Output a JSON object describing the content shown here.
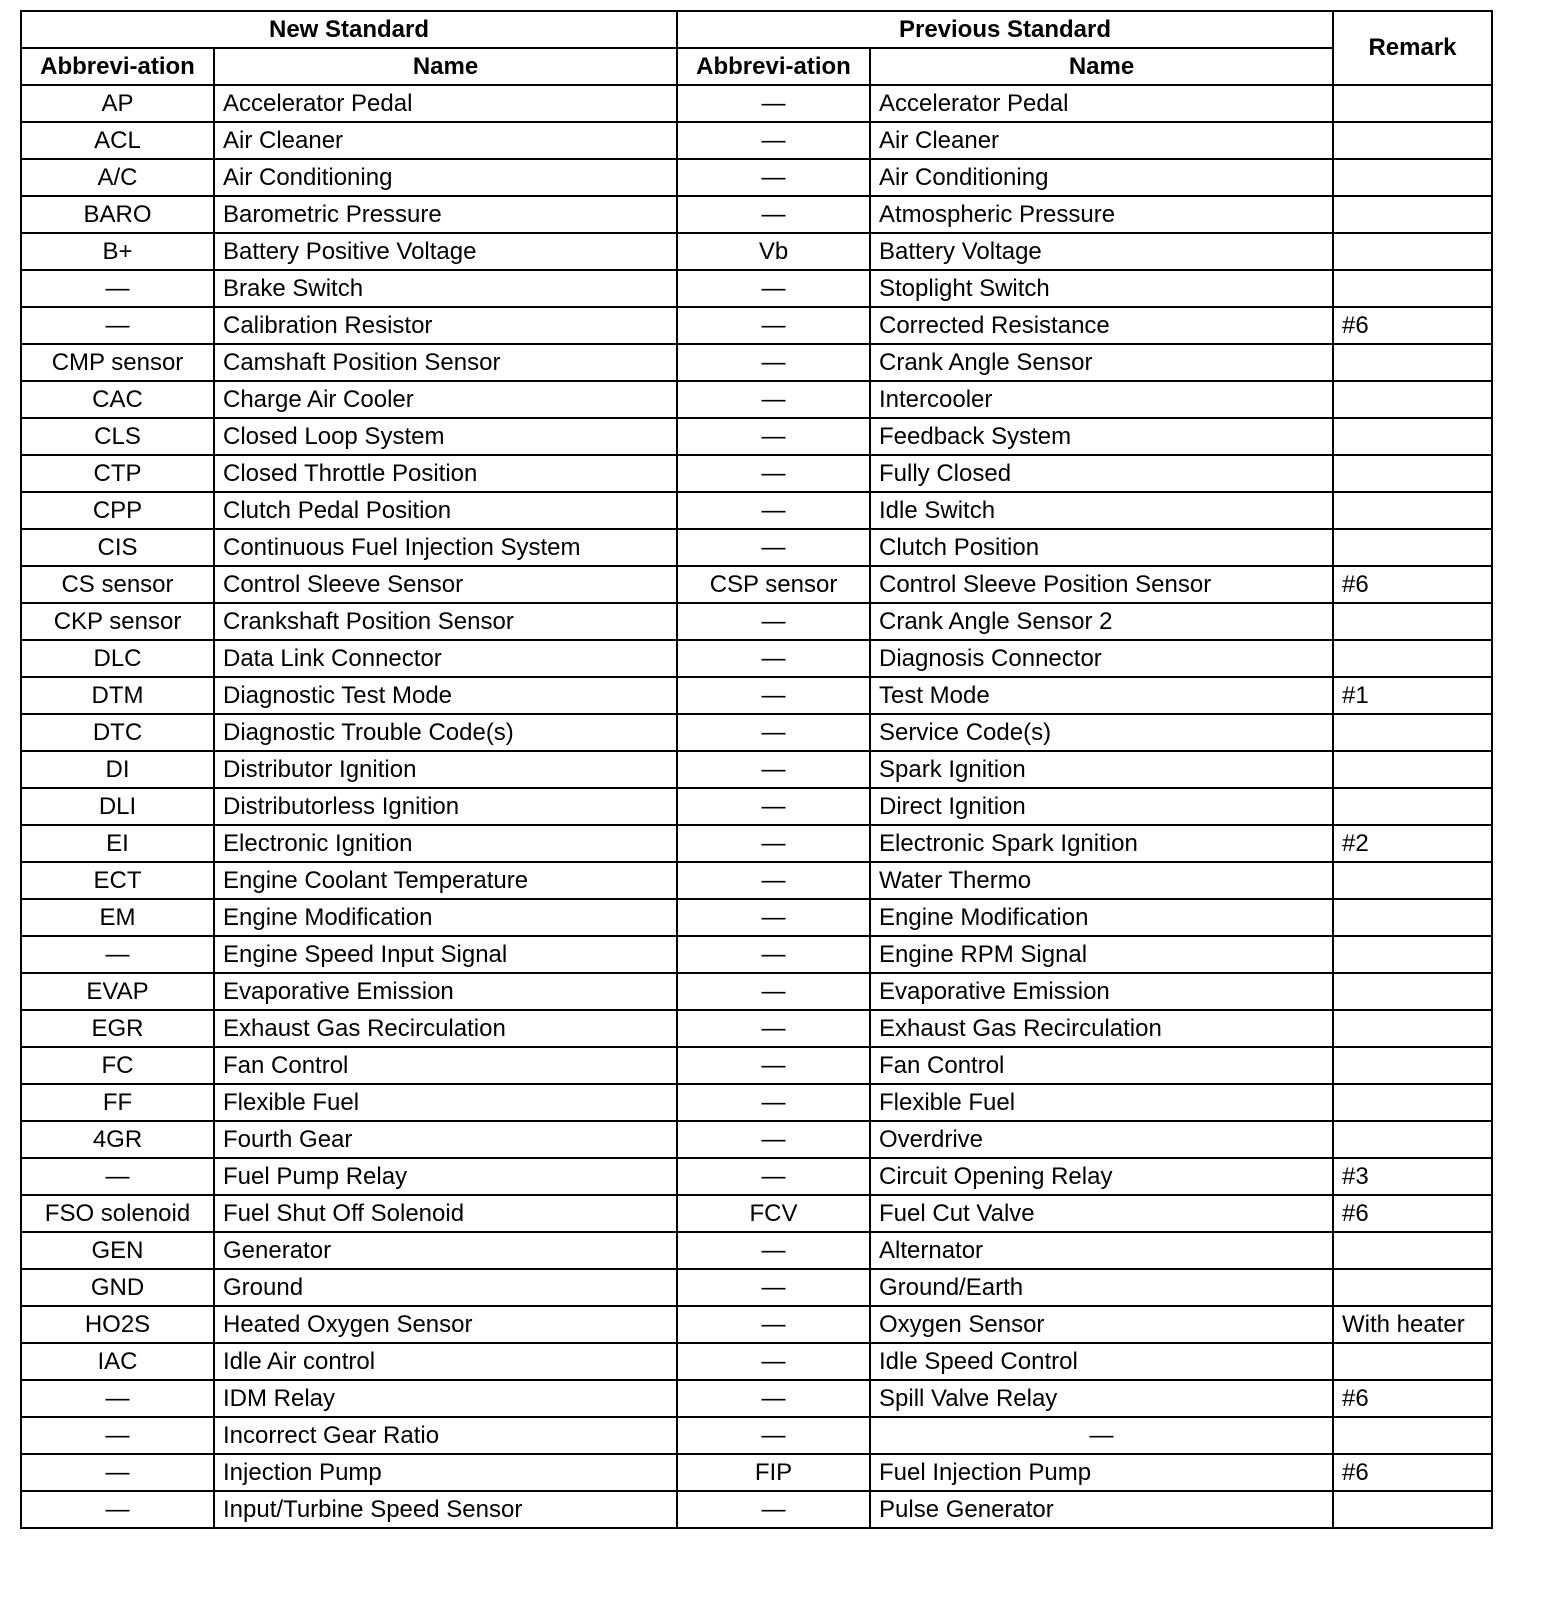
{
  "header": {
    "new_standard": "New Standard",
    "previous_standard": "Previous Standard",
    "remark": "Remark",
    "abbreviation": "Abbrevi-ation",
    "name": "Name"
  },
  "rows": [
    [
      "AP",
      "Accelerator Pedal",
      "—",
      "Accelerator Pedal",
      ""
    ],
    [
      "ACL",
      "Air Cleaner",
      "—",
      "Air Cleaner",
      ""
    ],
    [
      "A/C",
      "Air Conditioning",
      "—",
      "Air Conditioning",
      ""
    ],
    [
      "BARO",
      "Barometric Pressure",
      "—",
      "Atmospheric Pressure",
      ""
    ],
    [
      "B+",
      "Battery Positive Voltage",
      "Vb",
      "Battery Voltage",
      ""
    ],
    [
      "—",
      "Brake Switch",
      "—",
      "Stoplight Switch",
      ""
    ],
    [
      "—",
      "Calibration Resistor",
      "—",
      "Corrected Resistance",
      "#6"
    ],
    [
      "CMP sensor",
      "Camshaft Position Sensor",
      "—",
      "Crank Angle Sensor",
      ""
    ],
    [
      "CAC",
      "Charge Air Cooler",
      "—",
      "Intercooler",
      ""
    ],
    [
      "CLS",
      "Closed Loop System",
      "—",
      "Feedback System",
      ""
    ],
    [
      "CTP",
      "Closed Throttle Position",
      "—",
      "Fully Closed",
      ""
    ],
    [
      "CPP",
      "Clutch Pedal Position",
      "—",
      "Idle Switch",
      ""
    ],
    [
      "CIS",
      "Continuous Fuel Injection System",
      "—",
      "Clutch Position",
      ""
    ],
    [
      "CS sensor",
      "Control Sleeve Sensor",
      "CSP sensor",
      "Control Sleeve Position Sensor",
      "#6"
    ],
    [
      "CKP sensor",
      "Crankshaft Position Sensor",
      "—",
      "Crank Angle Sensor 2",
      ""
    ],
    [
      "DLC",
      "Data Link Connector",
      "—",
      "Diagnosis Connector",
      ""
    ],
    [
      "DTM",
      "Diagnostic Test Mode",
      "—",
      "Test Mode",
      "#1"
    ],
    [
      "DTC",
      "Diagnostic Trouble Code(s)",
      "—",
      "Service Code(s)",
      ""
    ],
    [
      "DI",
      "Distributor Ignition",
      "—",
      "Spark Ignition",
      ""
    ],
    [
      "DLI",
      "Distributorless Ignition",
      "—",
      "Direct Ignition",
      ""
    ],
    [
      "EI",
      "Electronic Ignition",
      "—",
      "Electronic Spark Ignition",
      "#2"
    ],
    [
      "ECT",
      "Engine Coolant Temperature",
      "—",
      "Water Thermo",
      ""
    ],
    [
      "EM",
      "Engine Modification",
      "—",
      "Engine Modification",
      ""
    ],
    [
      "—",
      "Engine Speed Input Signal",
      "—",
      "Engine RPM Signal",
      ""
    ],
    [
      "EVAP",
      "Evaporative Emission",
      "—",
      "Evaporative Emission",
      ""
    ],
    [
      "EGR",
      "Exhaust Gas Recirculation",
      "—",
      "Exhaust Gas Recirculation",
      ""
    ],
    [
      "FC",
      "Fan Control",
      "—",
      "Fan Control",
      ""
    ],
    [
      "FF",
      "Flexible Fuel",
      "—",
      "Flexible Fuel",
      ""
    ],
    [
      "4GR",
      "Fourth Gear",
      "—",
      "Overdrive",
      ""
    ],
    [
      "—",
      "Fuel Pump Relay",
      "—",
      "Circuit Opening Relay",
      "#3"
    ],
    [
      "FSO solenoid",
      "Fuel Shut Off Solenoid",
      "FCV",
      "Fuel Cut Valve",
      "#6"
    ],
    [
      "GEN",
      "Generator",
      "—",
      "Alternator",
      ""
    ],
    [
      "GND",
      "Ground",
      "—",
      "Ground/Earth",
      ""
    ],
    [
      "HO2S",
      "Heated Oxygen Sensor",
      "—",
      "Oxygen Sensor",
      "With heater"
    ],
    [
      "IAC",
      "Idle Air control",
      "—",
      "Idle Speed Control",
      ""
    ],
    [
      "—",
      "IDM Relay",
      "—",
      "Spill Valve Relay",
      "#6"
    ],
    [
      "—",
      "Incorrect Gear Ratio",
      "—",
      "—",
      ""
    ],
    [
      "—",
      "Injection Pump",
      "FIP",
      "Fuel Injection Pump",
      "#6"
    ],
    [
      "—",
      "Input/Turbine Speed Sensor",
      "—",
      "Pulse Generator",
      ""
    ]
  ]
}
